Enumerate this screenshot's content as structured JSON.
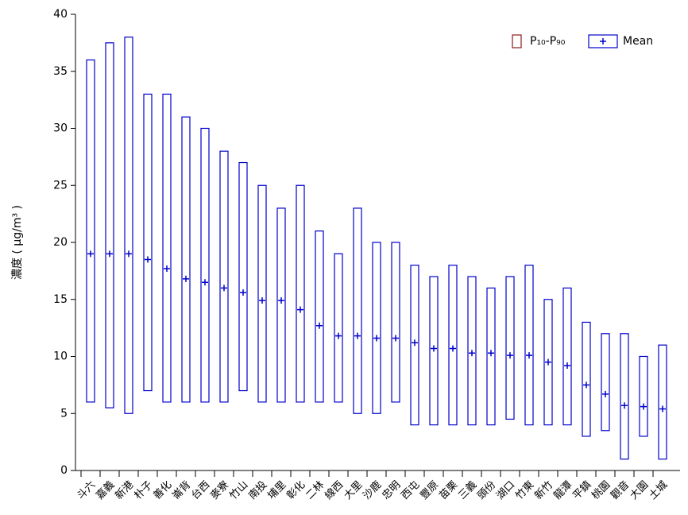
{
  "chart_data": {
    "type": "range_box",
    "y_label": "濃度 ( μg/m³ )",
    "categories": [
      "斗六",
      "嘉義",
      "新港",
      "朴子",
      "善化",
      "崙背",
      "台西",
      "麥寮",
      "竹山",
      "南投",
      "埔里",
      "彰化",
      "二林",
      "線西",
      "大里",
      "沙鹿",
      "忠明",
      "西屯",
      "豐原",
      "苗栗",
      "三義",
      "頭份",
      "湖口",
      "竹東",
      "新竹",
      "龍潭",
      "平鎮",
      "桃園",
      "觀音",
      "大園",
      "土城"
    ],
    "p10": [
      6,
      5.5,
      5,
      7,
      6,
      6,
      6,
      6,
      7,
      6,
      6,
      6,
      6,
      6,
      5,
      5,
      6,
      4,
      4,
      4,
      4,
      4,
      4.5,
      4,
      4,
      4,
      3,
      3.5,
      1,
      3,
      1
    ],
    "p90": [
      36,
      37.5,
      38,
      33,
      33,
      31,
      30,
      28,
      27,
      25,
      23,
      25,
      21,
      19,
      23,
      20,
      20,
      18,
      17,
      18,
      17,
      16,
      17,
      18,
      15,
      16,
      13,
      12,
      12,
      10,
      11
    ],
    "mean": [
      19,
      19,
      19,
      18.5,
      17.7,
      16.8,
      16.5,
      16,
      15.6,
      14.9,
      14.9,
      14.1,
      12.7,
      11.8,
      11.8,
      11.6,
      11.6,
      11.2,
      10.7,
      10.7,
      10.3,
      10.3,
      10.1,
      10.1,
      9.5,
      9.2,
      7.5,
      6.7,
      5.7,
      5.6,
      5.4
    ],
    "color": "#0000cc",
    "legend": [
      {
        "name": "P₁₀-P₉₀",
        "color": "#8b1a1a"
      },
      {
        "name": "Mean",
        "color": "#0000cc"
      }
    ],
    "legend_position": "upper right",
    "ylim": [
      0,
      40
    ],
    "yticks": [
      0,
      5,
      10,
      15,
      20,
      25,
      30,
      35,
      40
    ]
  }
}
